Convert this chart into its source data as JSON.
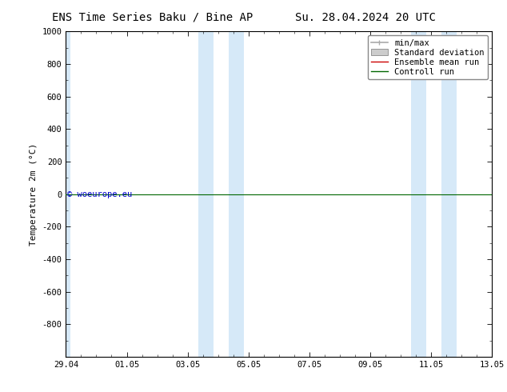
{
  "title_left": "ENS Time Series Baku / Bine AP",
  "title_right": "Su. 28.04.2024 20 UTC",
  "ylabel": "Temperature 2m (°C)",
  "ylim_top": -1000,
  "ylim_bottom": 1000,
  "yticks": [
    -800,
    -600,
    -400,
    -200,
    0,
    200,
    400,
    600,
    800,
    1000
  ],
  "xtick_labels": [
    "29.04",
    "01.05",
    "03.05",
    "05.05",
    "07.05",
    "09.05",
    "11.05",
    "13.05"
  ],
  "xtick_positions": [
    0,
    2,
    4,
    6,
    8,
    10,
    12,
    14
  ],
  "shaded_regions": [
    [
      -0.15,
      0.15
    ],
    [
      4.35,
      4.85
    ],
    [
      5.35,
      5.85
    ],
    [
      11.35,
      11.85
    ],
    [
      12.35,
      12.85
    ]
  ],
  "shaded_color": "#d6e9f8",
  "horizontal_line_y": 0,
  "ensemble_mean_color": "#cc0000",
  "control_run_color": "#006600",
  "min_max_color": "#aaaaaa",
  "std_dev_color": "#cccccc",
  "watermark_text": "© woeurope.eu",
  "watermark_color": "#0000cc",
  "background_color": "#ffffff",
  "plot_bg_color": "#ffffff",
  "border_color": "#000000",
  "title_fontsize": 10,
  "axis_label_fontsize": 8,
  "tick_fontsize": 7.5,
  "legend_fontsize": 7.5
}
